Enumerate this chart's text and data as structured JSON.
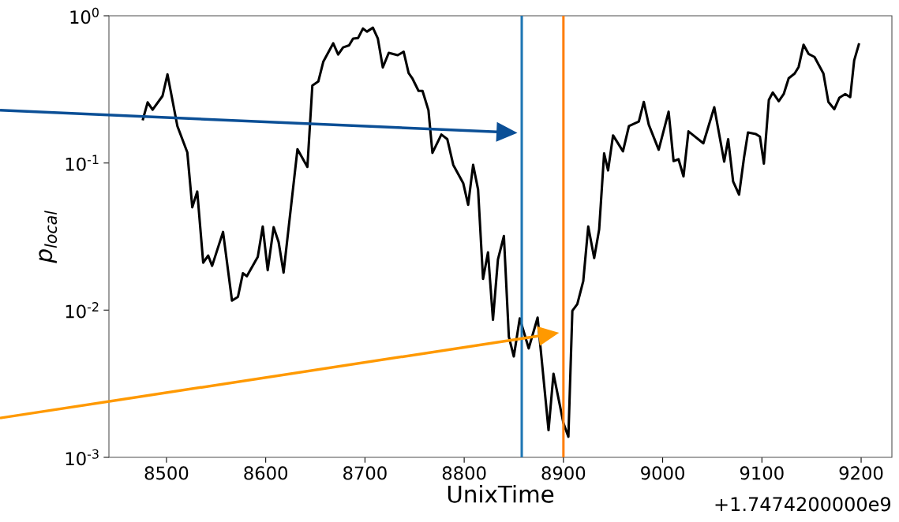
{
  "chart_data": {
    "type": "line",
    "xlabel": "UnixTime",
    "ylabel": "p$_{local}$",
    "annotations": [
      "+1.7474200000e9"
    ],
    "color": "#000000",
    "x": [
      8476,
      8481,
      8486,
      8496,
      8501,
      8511,
      8521,
      8526,
      8531,
      8537,
      8542,
      8546,
      8557,
      8566,
      8572,
      8577,
      8581,
      8592,
      8597,
      8602,
      8608,
      8613,
      8618,
      8632,
      8642,
      8647,
      8653,
      8658,
      8668,
      8673,
      8678,
      8684,
      8688,
      8693,
      8698,
      8702,
      8708,
      8713,
      8718,
      8724,
      8733,
      8739,
      8744,
      8748,
      8754,
      8758,
      8764,
      8768,
      8777,
      8783,
      8789,
      8799,
      8804,
      8809,
      8814,
      8819,
      8824,
      8829,
      8834,
      8840,
      8845,
      8850,
      8856,
      8865,
      8874,
      8885,
      8890,
      8900,
      8905,
      8909,
      8914,
      8920,
      8925,
      8931,
      8936,
      8941,
      8945,
      8950,
      8960,
      8966,
      8976,
      8981,
      8986,
      8996,
      9006,
      9011,
      9016,
      9021,
      9026,
      9041,
      9052,
      9062,
      9066,
      9071,
      9077,
      9082,
      9086,
      9094,
      9098,
      9102,
      9107,
      9111,
      9117,
      9122,
      9127,
      9133,
      9137,
      9142,
      9147,
      9153,
      9162,
      9167,
      9173,
      9178,
      9184,
      9189,
      9193,
      9198
    ],
    "values": [
      0.195,
      0.258,
      0.23,
      0.285,
      0.4,
      0.178,
      0.118,
      0.05,
      0.064,
      0.021,
      0.0235,
      0.02,
      0.034,
      0.0116,
      0.0123,
      0.0178,
      0.017,
      0.023,
      0.037,
      0.0187,
      0.0366,
      0.029,
      0.018,
      0.124,
      0.094,
      0.336,
      0.358,
      0.487,
      0.65,
      0.545,
      0.61,
      0.63,
      0.7,
      0.705,
      0.82,
      0.78,
      0.83,
      0.7,
      0.446,
      0.56,
      0.54,
      0.57,
      0.408,
      0.373,
      0.309,
      0.309,
      0.228,
      0.117,
      0.156,
      0.145,
      0.097,
      0.073,
      0.052,
      0.097,
      0.066,
      0.0163,
      0.0247,
      0.0086,
      0.0221,
      0.0319,
      0.0066,
      0.00485,
      0.0088,
      0.0055,
      0.0089,
      0.00153,
      0.0037,
      0.00171,
      0.00138,
      0.0099,
      0.011,
      0.0158,
      0.037,
      0.0226,
      0.0353,
      0.116,
      0.089,
      0.154,
      0.12,
      0.178,
      0.191,
      0.26,
      0.182,
      0.123,
      0.223,
      0.103,
      0.106,
      0.081,
      0.164,
      0.136,
      0.239,
      0.102,
      0.145,
      0.075,
      0.061,
      0.109,
      0.161,
      0.157,
      0.151,
      0.099,
      0.268,
      0.301,
      0.263,
      0.294,
      0.376,
      0.405,
      0.449,
      0.636,
      0.551,
      0.525,
      0.405,
      0.26,
      0.232,
      0.277,
      0.294,
      0.28,
      0.497,
      0.65
    ],
    "ref_lines": [
      {
        "axis": "x",
        "value": 8858,
        "color": "#1f77b4"
      },
      {
        "axis": "x",
        "value": 8900,
        "color": "#ff7f0e"
      }
    ],
    "xlim": [
      8442,
      9231
    ],
    "ylim": [
      0.001,
      1
    ],
    "log": "y",
    "xticks": [
      8500,
      8600,
      8700,
      8800,
      8900,
      9000,
      9100,
      9200
    ],
    "yticks": [
      {
        "value": 0.001,
        "label": "10$^{-3}$"
      },
      {
        "value": 0.01,
        "label": "10$^{-2}$"
      },
      {
        "value": 0.1,
        "label": "10$^{-1}$"
      },
      {
        "value": 1,
        "label": "10$^{0}$"
      }
    ],
    "grid": false,
    "marker": "none",
    "line_style": "solid"
  }
}
